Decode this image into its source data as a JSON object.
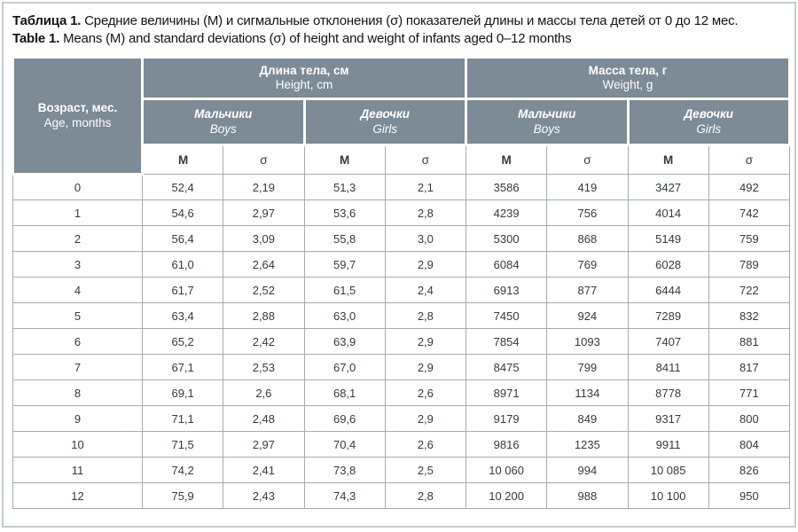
{
  "title": {
    "ru": {
      "label": "Таблица 1.",
      "text": "Средние величины (М) и сигмальные отклонения (σ) показателей длины и массы тела детей от 0 до 12 мес."
    },
    "en": {
      "label": "Table 1.",
      "text": "Means (M) and standard deviations (σ) of height and weight of infants aged 0–12 months"
    }
  },
  "table": {
    "age_header": {
      "ru": "Возраст, мес.",
      "en": "Age, months"
    },
    "groups": {
      "height": {
        "ru": "Длина тела, см",
        "en": "Height, cm"
      },
      "weight": {
        "ru": "Масса тела, г",
        "en": "Weight, g"
      }
    },
    "sex": {
      "boys": {
        "ru": "Мальчики",
        "en": "Boys"
      },
      "girls": {
        "ru": "Девочки",
        "en": "Girls"
      }
    },
    "stat": {
      "mean": "М",
      "sigma": "σ"
    },
    "rows": [
      {
        "age": "0",
        "values": [
          "52,4",
          "2,19",
          "51,3",
          "2,1",
          "3586",
          "419",
          "3427",
          "492"
        ]
      },
      {
        "age": "1",
        "values": [
          "54,6",
          "2,97",
          "53,6",
          "2,8",
          "4239",
          "756",
          "4014",
          "742"
        ]
      },
      {
        "age": "2",
        "values": [
          "56,4",
          "3,09",
          "55,8",
          "3,0",
          "5300",
          "868",
          "5149",
          "759"
        ]
      },
      {
        "age": "3",
        "values": [
          "61,0",
          "2,64",
          "59,7",
          "2,9",
          "6084",
          "769",
          "6028",
          "789"
        ]
      },
      {
        "age": "4",
        "values": [
          "61,7",
          "2,52",
          "61,5",
          "2,4",
          "6913",
          "877",
          "6444",
          "722"
        ]
      },
      {
        "age": "5",
        "values": [
          "63,4",
          "2,88",
          "63,0",
          "2,8",
          "7450",
          "924",
          "7289",
          "832"
        ]
      },
      {
        "age": "6",
        "values": [
          "65,2",
          "2,42",
          "63,9",
          "2,9",
          "7854",
          "1093",
          "7407",
          "881"
        ]
      },
      {
        "age": "7",
        "values": [
          "67,1",
          "2,53",
          "67,0",
          "2,9",
          "8475",
          "799",
          "8411",
          "817"
        ]
      },
      {
        "age": "8",
        "values": [
          "69,1",
          "2,6",
          "68,1",
          "2,6",
          "8971",
          "1134",
          "8778",
          "771"
        ]
      },
      {
        "age": "9",
        "values": [
          "71,1",
          "2,48",
          "69,6",
          "2,9",
          "9179",
          "849",
          "9317",
          "800"
        ]
      },
      {
        "age": "10",
        "values": [
          "71,5",
          "2,97",
          "70,4",
          "2,6",
          "9816",
          "1235",
          "9911",
          "804"
        ]
      },
      {
        "age": "11",
        "values": [
          "74,2",
          "2,41",
          "73,8",
          "2,5",
          "10 060",
          "994",
          "10 085",
          "826"
        ]
      },
      {
        "age": "12",
        "values": [
          "75,9",
          "2,43",
          "74,3",
          "2,8",
          "10 200",
          "988",
          "10 100",
          "950"
        ]
      }
    ]
  },
  "colors": {
    "header_bg": "#7c8b95",
    "header_text": "#ffffff",
    "body_text": "#333b41",
    "grid_line": "#a7abae",
    "frame_border": "#c2ccd3"
  }
}
